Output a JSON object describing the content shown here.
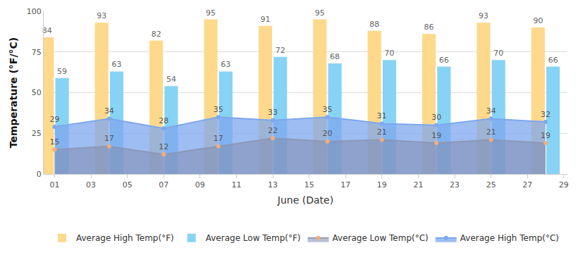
{
  "chart_data": {
    "type": "bar",
    "x_label": "June (Date)",
    "y_label": "Temperature (°F/°C)",
    "x": [
      1,
      4,
      7,
      10,
      13,
      16,
      19,
      22,
      25,
      28
    ],
    "xlim": [
      0.4,
      29.2
    ],
    "xticks": [
      {
        "value": 1,
        "label": "01"
      },
      {
        "value": 3,
        "label": "03"
      },
      {
        "value": 5,
        "label": "05"
      },
      {
        "value": 7,
        "label": "07"
      },
      {
        "value": 9,
        "label": "09"
      },
      11,
      13,
      15,
      17,
      19,
      21,
      23,
      25,
      27,
      29
    ],
    "ylim": [
      0,
      100
    ],
    "yticks": [
      0,
      25,
      50,
      75,
      100
    ],
    "grid": true,
    "legend": "bottom",
    "data_labels": true,
    "series": [
      {
        "name": "Average High Temp(°F)",
        "type": "bar",
        "color": "#fed98b",
        "values": [
          84,
          93,
          82,
          95,
          91,
          95,
          88,
          86,
          93,
          90
        ]
      },
      {
        "name": "Average Low Temp(°F)",
        "type": "bar",
        "color": "#87d3f5",
        "values": [
          59,
          63,
          54,
          63,
          72,
          68,
          70,
          66,
          70,
          66
        ]
      },
      {
        "name": "Average Low Temp(°C)",
        "type": "area",
        "color": "#f2ad7c",
        "values": [
          15,
          17,
          12,
          17,
          22,
          20,
          21,
          19,
          21,
          19
        ]
      },
      {
        "name": "Average High Temp(°C)",
        "type": "area",
        "color": "#7ea7ee",
        "values": [
          29,
          34,
          28,
          35,
          33,
          35,
          31,
          30,
          34,
          32
        ]
      }
    ]
  }
}
